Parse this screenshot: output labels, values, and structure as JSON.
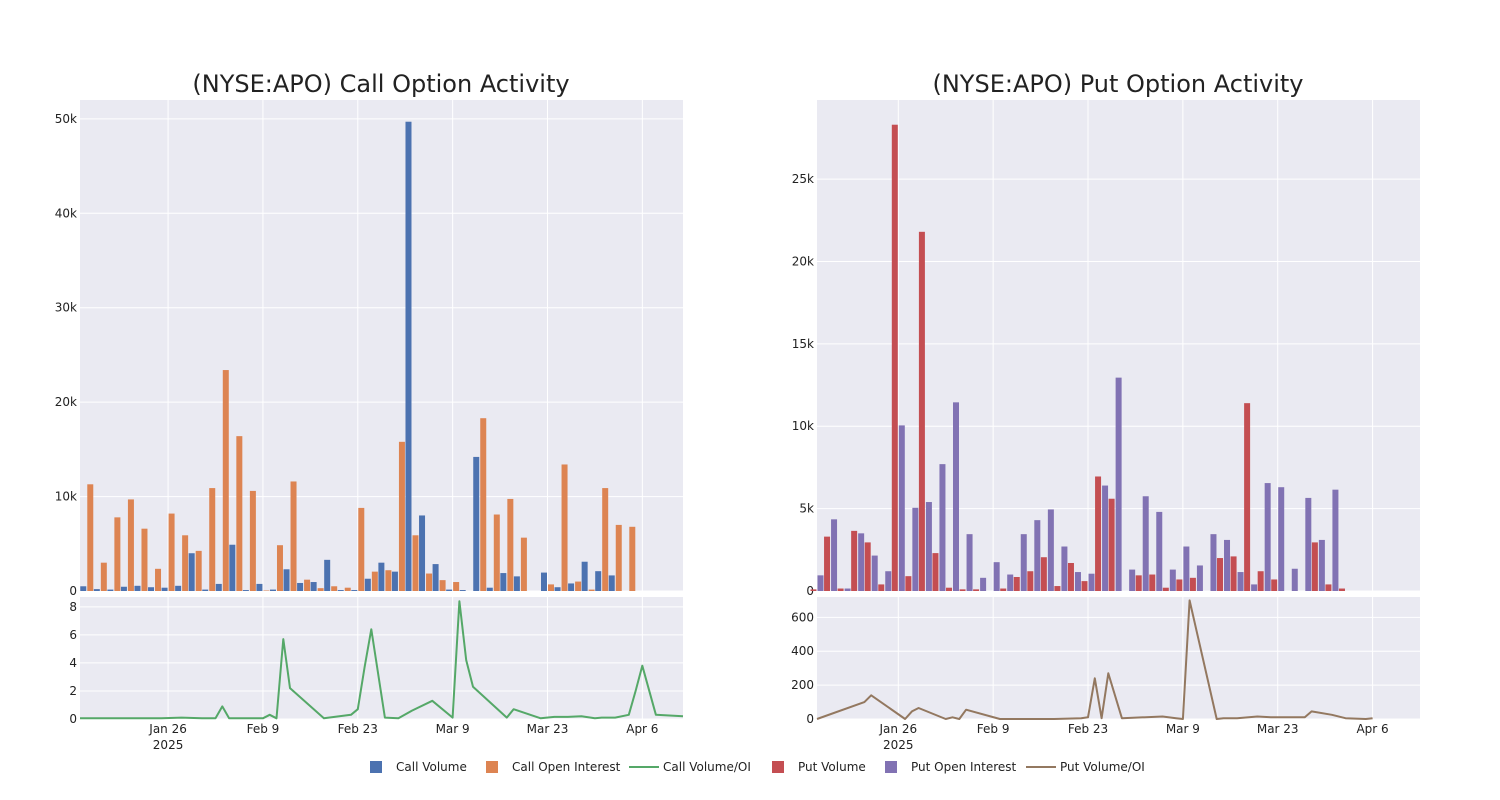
{
  "colors": {
    "call_volume": "#4c72b0",
    "call_open_interest": "#dd8452",
    "call_ratio": "#55a868",
    "put_volume": "#c44e52",
    "put_open_interest": "#8172b3",
    "put_ratio": "#937860",
    "plot_background": "#eaeaf2",
    "grid": "#ffffff"
  },
  "legend": {
    "items": [
      "Call Volume",
      "Call Open Interest",
      "Call Volume/OI",
      "Put Volume",
      "Put Open Interest",
      "Put Volume/OI"
    ]
  },
  "chart_data": [
    {
      "type": "bar",
      "name": "call-activity",
      "title": "(NYSE:APO) Call Option Activity",
      "x_ticks": [
        {
          "date": "2025-01-26",
          "label": "Jan 26",
          "sublabel": "2025"
        },
        {
          "date": "2025-02-09",
          "label": "Feb 9"
        },
        {
          "date": "2025-02-23",
          "label": "Feb 23"
        },
        {
          "date": "2025-03-09",
          "label": "Mar 9"
        },
        {
          "date": "2025-03-23",
          "label": "Mar 23"
        },
        {
          "date": "2025-04-06",
          "label": "Apr 6"
        }
      ],
      "xlim": [
        "2025-01-13",
        "2025-04-12"
      ],
      "ylim": [
        0,
        52000
      ],
      "y_ticks": [
        0,
        10000,
        20000,
        30000,
        40000,
        50000
      ],
      "y_tick_labels": [
        "0",
        "10k",
        "20k",
        "30k",
        "40k",
        "50k"
      ],
      "dates": [
        "2025-01-14",
        "2025-01-16",
        "2025-01-18",
        "2025-01-20",
        "2025-01-22",
        "2025-01-24",
        "2025-01-26",
        "2025-01-28",
        "2025-01-30",
        "2025-02-01",
        "2025-02-03",
        "2025-02-05",
        "2025-02-07",
        "2025-02-09",
        "2025-02-11",
        "2025-02-13",
        "2025-02-15",
        "2025-02-17",
        "2025-02-19",
        "2025-02-21",
        "2025-02-23",
        "2025-02-25",
        "2025-02-27",
        "2025-03-01",
        "2025-03-03",
        "2025-03-05",
        "2025-03-07",
        "2025-03-09",
        "2025-03-11",
        "2025-03-13",
        "2025-03-15",
        "2025-03-17",
        "2025-03-19",
        "2025-03-21",
        "2025-03-23",
        "2025-03-25",
        "2025-03-27",
        "2025-03-29",
        "2025-03-31",
        "2025-04-02",
        "2025-04-04",
        "2025-04-06",
        "2025-04-08",
        "2025-04-10"
      ],
      "series": [
        {
          "name": "Call Volume",
          "values": [
            500,
            200,
            150,
            450,
            550,
            400,
            350,
            550,
            4000,
            150,
            750,
            4900,
            100,
            750,
            150,
            2300,
            850,
            950,
            3300,
            100,
            100,
            1300,
            3000,
            2050,
            49700,
            8000,
            2850,
            150,
            100,
            14200,
            350,
            1900,
            1550,
            0,
            1950,
            400,
            800,
            3100,
            2100,
            1650,
            0,
            0,
            0,
            0
          ]
        },
        {
          "name": "Call Open Interest",
          "values": [
            11300,
            3000,
            7800,
            9700,
            6600,
            2350,
            8200,
            5900,
            4250,
            10900,
            23400,
            16400,
            10600,
            50,
            4850,
            11600,
            1200,
            300,
            500,
            350,
            8800,
            2050,
            2200,
            15800,
            5900,
            1850,
            1150,
            950,
            0,
            18300,
            8100,
            9750,
            5650,
            0,
            700,
            13400,
            1000,
            150,
            10900,
            7000,
            6800,
            0,
            0,
            0
          ]
        }
      ],
      "ratio": {
        "name": "Call Volume/OI",
        "dates": [
          "2025-01-13",
          "2025-01-16",
          "2025-01-19",
          "2025-01-22",
          "2025-01-25",
          "2025-01-28",
          "2025-01-31",
          "2025-02-02",
          "2025-02-03",
          "2025-02-04",
          "2025-02-06",
          "2025-02-09",
          "2025-02-10",
          "2025-02-11",
          "2025-02-12",
          "2025-02-13",
          "2025-02-18",
          "2025-02-22",
          "2025-02-23",
          "2025-02-24",
          "2025-02-25",
          "2025-02-27",
          "2025-03-01",
          "2025-03-03",
          "2025-03-06",
          "2025-03-09",
          "2025-03-10",
          "2025-03-11",
          "2025-03-12",
          "2025-03-17",
          "2025-03-18",
          "2025-03-22",
          "2025-03-24",
          "2025-03-26",
          "2025-03-28",
          "2025-03-30",
          "2025-03-31",
          "2025-04-02",
          "2025-04-04",
          "2025-04-05",
          "2025-04-06",
          "2025-04-08",
          "2025-04-12"
        ],
        "values": [
          0.05,
          0.05,
          0.05,
          0.05,
          0.05,
          0.1,
          0.05,
          0.05,
          0.9,
          0.05,
          0.05,
          0.05,
          0.3,
          0.05,
          5.7,
          2.2,
          0.05,
          0.3,
          0.7,
          3.7,
          6.4,
          0.1,
          0.05,
          0.6,
          1.3,
          0.1,
          8.4,
          4.2,
          2.3,
          0.1,
          0.7,
          0.05,
          0.15,
          0.15,
          0.2,
          0.05,
          0.1,
          0.1,
          0.3,
          2.0,
          3.8,
          0.3,
          0.2
        ]
      },
      "ratio_ylim": [
        0,
        8.7
      ],
      "ratio_ticks": [
        0,
        2,
        4,
        6,
        8
      ],
      "ratio_tick_labels": [
        "0",
        "2",
        "4",
        "6",
        "8"
      ]
    },
    {
      "type": "bar",
      "name": "put-activity",
      "title": "(NYSE:APO) Put Option Activity",
      "x_ticks": [
        {
          "date": "2025-01-26",
          "label": "Jan 26",
          "sublabel": "2025"
        },
        {
          "date": "2025-02-09",
          "label": "Feb 9"
        },
        {
          "date": "2025-02-23",
          "label": "Feb 23"
        },
        {
          "date": "2025-03-09",
          "label": "Mar 9"
        },
        {
          "date": "2025-03-23",
          "label": "Mar 23"
        },
        {
          "date": "2025-04-06",
          "label": "Apr 6"
        }
      ],
      "xlim": [
        "2025-01-14",
        "2025-04-13"
      ],
      "ylim": [
        0,
        29800
      ],
      "y_ticks": [
        0,
        5000,
        10000,
        15000,
        20000,
        25000
      ],
      "y_tick_labels": [
        "0",
        "5k",
        "10k",
        "15k",
        "20k",
        "25k"
      ],
      "dates": [
        "2025-01-14",
        "2025-01-16",
        "2025-01-18",
        "2025-01-20",
        "2025-01-22",
        "2025-01-24",
        "2025-01-26",
        "2025-01-28",
        "2025-01-30",
        "2025-02-01",
        "2025-02-03",
        "2025-02-05",
        "2025-02-07",
        "2025-02-09",
        "2025-02-11",
        "2025-02-13",
        "2025-02-15",
        "2025-02-17",
        "2025-02-19",
        "2025-02-21",
        "2025-02-23",
        "2025-02-25",
        "2025-02-27",
        "2025-03-01",
        "2025-03-03",
        "2025-03-05",
        "2025-03-07",
        "2025-03-09",
        "2025-03-11",
        "2025-03-13",
        "2025-03-15",
        "2025-03-17",
        "2025-03-19",
        "2025-03-21",
        "2025-03-23",
        "2025-03-25",
        "2025-03-27",
        "2025-03-29",
        "2025-03-31",
        "2025-04-02",
        "2025-04-04",
        "2025-04-06",
        "2025-04-08",
        "2025-04-10",
        "2025-04-12"
      ],
      "series": [
        {
          "name": "Put Volume",
          "values": [
            100,
            3300,
            150,
            3650,
            2950,
            400,
            28300,
            900,
            21800,
            2300,
            200,
            100,
            100,
            0,
            150,
            850,
            1200,
            2050,
            300,
            1700,
            600,
            6950,
            5600,
            0,
            950,
            1000,
            200,
            700,
            800,
            0,
            2000,
            2100,
            11400,
            1200,
            700,
            0,
            0,
            2950,
            400,
            150,
            0,
            0,
            0,
            0,
            0
          ]
        },
        {
          "name": "Put Open Interest",
          "values": [
            950,
            4350,
            150,
            3500,
            2150,
            1200,
            10050,
            5050,
            5400,
            7700,
            11450,
            3450,
            800,
            1750,
            1000,
            3450,
            4300,
            4950,
            2700,
            1150,
            1050,
            6400,
            12950,
            1300,
            5750,
            4800,
            1300,
            2700,
            1550,
            3450,
            3100,
            1150,
            400,
            6550,
            6300,
            1350,
            5650,
            3100,
            6150,
            0,
            0,
            0,
            0,
            0,
            0
          ]
        }
      ],
      "ratio": {
        "name": "Put Volume/OI",
        "dates": [
          "2025-01-14",
          "2025-01-21",
          "2025-01-22",
          "2025-01-27",
          "2025-01-28",
          "2025-01-29",
          "2025-02-02",
          "2025-02-03",
          "2025-02-04",
          "2025-02-05",
          "2025-02-10",
          "2025-02-14",
          "2025-02-18",
          "2025-02-22",
          "2025-02-23",
          "2025-02-24",
          "2025-02-25",
          "2025-02-26",
          "2025-02-28",
          "2025-03-06",
          "2025-03-08",
          "2025-03-09",
          "2025-03-10",
          "2025-03-14",
          "2025-03-15",
          "2025-03-17",
          "2025-03-20",
          "2025-03-22",
          "2025-03-27",
          "2025-03-28",
          "2025-03-31",
          "2025-04-02",
          "2025-04-05",
          "2025-04-06",
          ""
        ]
      },
      "ratio_ylim": [
        0,
        720
      ],
      "ratio_ticks": [
        0,
        200,
        400,
        600
      ],
      "ratio_tick_labels": [
        "0",
        "200",
        "400",
        "600"
      ]
    }
  ]
}
